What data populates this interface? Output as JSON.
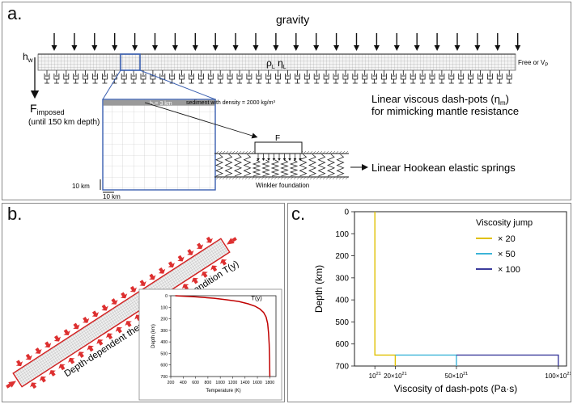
{
  "panel_a": {
    "label": "a.",
    "gravity": "gravity",
    "hw": "h",
    "hw_sub": "w",
    "rho": "ρ",
    "rho_sub": "L",
    "eta": "η",
    "eta_sub": "L",
    "free_label": "Free or V",
    "free_sub": "P",
    "f_imposed": "F",
    "f_imposed_sub": "imposed",
    "until_depth": "(until 150 km depth)",
    "sediment_h": "h",
    "sediment_h_sub": "s",
    "sediment_h_val": "= 3 km",
    "sediment_desc": "sediment with density = 2000 kg/m³",
    "dashpot_line1": "Linear viscous dash-pots (η",
    "dashpot_sub": "m",
    "dashpot_close": ")",
    "dashpot_line2": "for mimicking mantle resistance",
    "force_label": "F",
    "springs_label": "Linear Hookean elastic springs",
    "winkler_label": "Winkler foundation",
    "scale_v": "10 km",
    "scale_h": "10 km"
  },
  "panel_b": {
    "label": "b.",
    "bc_label": "Depth-dependent thermal boundary condition T(y)",
    "inset": {
      "curve_label": "T(y)",
      "ylabel": "Depth (km)",
      "xlabel": "Temperature (K)",
      "xticks": [
        "200",
        "400",
        "600",
        "800",
        "1000",
        "1200",
        "1400",
        "1600",
        "1800"
      ],
      "yticks": [
        "0",
        "100",
        "200",
        "300",
        "400",
        "500",
        "600",
        "700"
      ],
      "xlim": [
        200,
        1900
      ],
      "ylim": [
        0,
        700
      ],
      "curve": [
        [
          273,
          0
        ],
        [
          600,
          10
        ],
        [
          900,
          22
        ],
        [
          1100,
          35
        ],
        [
          1300,
          50
        ],
        [
          1450,
          70
        ],
        [
          1560,
          90
        ],
        [
          1640,
          115
        ],
        [
          1700,
          145
        ],
        [
          1740,
          185
        ],
        [
          1765,
          240
        ],
        [
          1780,
          320
        ],
        [
          1790,
          420
        ],
        [
          1797,
          550
        ],
        [
          1800,
          700
        ]
      ],
      "color": "#c00000"
    }
  },
  "panel_c": {
    "label": "c.",
    "chart_data": {
      "type": "line",
      "xlabel": "Viscosity of dash-pots (Pa·s)",
      "ylabel": "Depth (km)",
      "xlim": [
        0,
        104
      ],
      "ylim": [
        700,
        0
      ],
      "yticks": [
        "0",
        "100",
        "200",
        "300",
        "400",
        "500",
        "600",
        "700"
      ],
      "xticks": [
        {
          "v": 10,
          "base": "10",
          "sup": "21"
        },
        {
          "v": 20,
          "base": "20×10",
          "sup": "21"
        },
        {
          "v": 50,
          "base": "50×10",
          "sup": "21"
        },
        {
          "v": 100,
          "base": "100×10",
          "sup": "21"
        }
      ],
      "legend_title": "Viscosity jump",
      "legend_position": "top-right",
      "series": [
        {
          "name": "× 20",
          "color": "#e0c000",
          "x": [
            10,
            10,
            20,
            20
          ],
          "y": [
            0,
            650,
            650,
            700
          ]
        },
        {
          "name": "× 50",
          "color": "#3cb4d8",
          "x": [
            20,
            50,
            50
          ],
          "y": [
            650,
            650,
            700
          ]
        },
        {
          "name": "× 100",
          "color": "#3c3c9c",
          "x": [
            50,
            100,
            100
          ],
          "y": [
            650,
            650,
            700
          ]
        }
      ]
    }
  }
}
